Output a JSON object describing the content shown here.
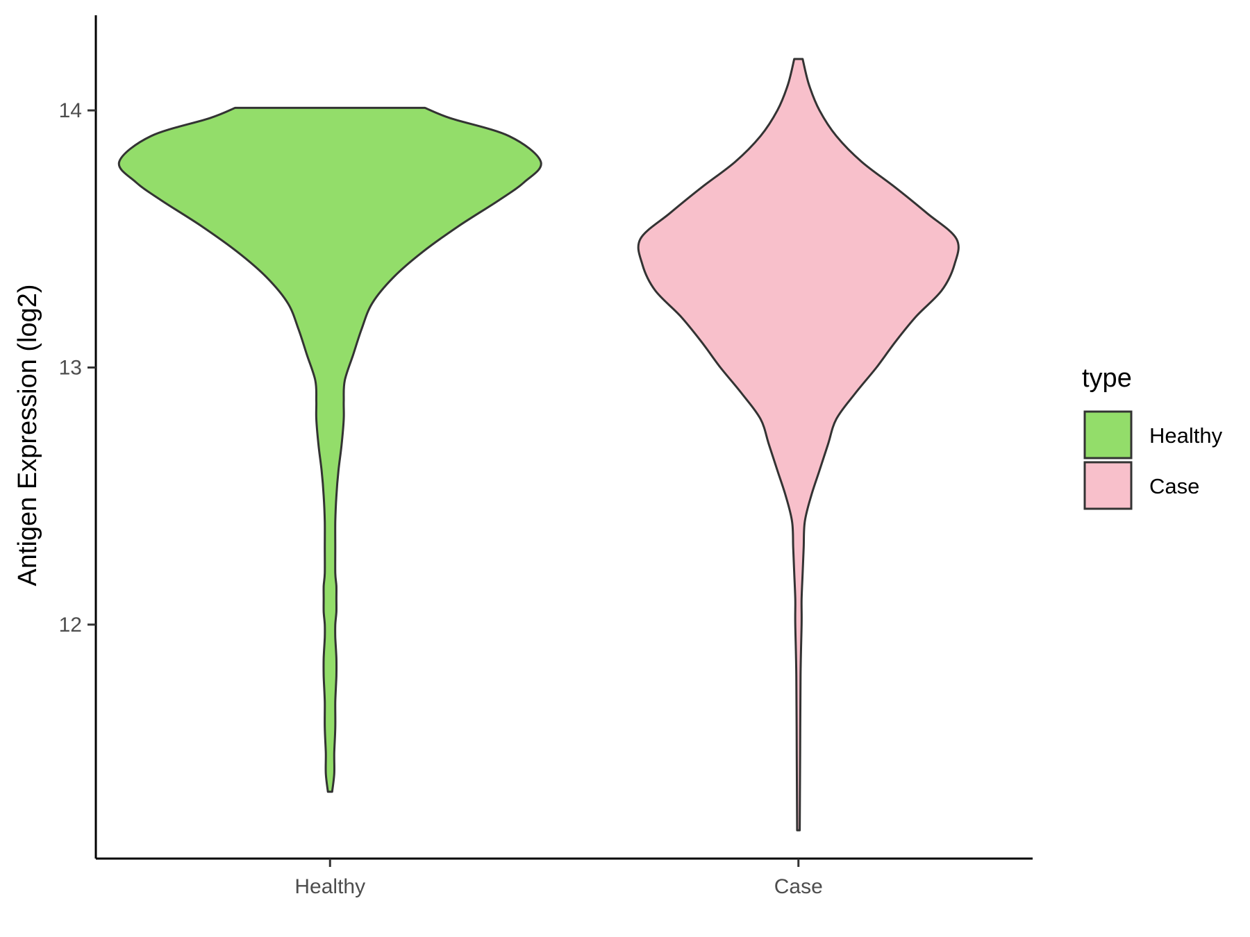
{
  "chart_data": {
    "type": "violin",
    "ylabel": "Antigen Expression (log2)",
    "xlabel": "",
    "categories": [
      "Healthy",
      "Case"
    ],
    "yticks": [
      12,
      13,
      14
    ],
    "ylim": [
      11.09,
      14.37
    ],
    "legend": {
      "title": "type",
      "position": "right",
      "entries": [
        {
          "label": "Healthy",
          "color": "#93dd6a"
        },
        {
          "label": "Case",
          "color": "#f8c0cb"
        }
      ]
    },
    "grid": false,
    "series": [
      {
        "category": "Healthy",
        "color": "#93dd6a",
        "min": 11.35,
        "max": 14.01,
        "density_y": [
          11.35,
          11.42,
          11.5,
          11.6,
          11.7,
          11.8,
          11.87,
          11.95,
          12.0,
          12.05,
          12.1,
          12.15,
          12.2,
          12.3,
          12.4,
          12.5,
          12.6,
          12.7,
          12.8,
          12.87,
          12.95,
          13.05,
          13.15,
          13.25,
          13.35,
          13.45,
          13.55,
          13.65,
          13.72,
          13.8,
          13.9,
          13.97,
          14.01
        ],
        "density_w": [
          0.01,
          0.02,
          0.02,
          0.025,
          0.025,
          0.03,
          0.03,
          0.025,
          0.025,
          0.03,
          0.03,
          0.03,
          0.025,
          0.025,
          0.025,
          0.03,
          0.04,
          0.055,
          0.065,
          0.065,
          0.07,
          0.11,
          0.15,
          0.2,
          0.3,
          0.44,
          0.61,
          0.8,
          0.92,
          1.0,
          0.85,
          0.57,
          0.45
        ]
      },
      {
        "category": "Case",
        "color": "#f8c0cb",
        "min": 11.2,
        "max": 14.2,
        "density_y": [
          11.2,
          11.5,
          11.8,
          12.0,
          12.1,
          12.2,
          12.3,
          12.4,
          12.5,
          12.6,
          12.7,
          12.8,
          12.9,
          13.0,
          13.1,
          13.2,
          13.3,
          13.4,
          13.5,
          13.6,
          13.7,
          13.8,
          13.9,
          14.0,
          14.1,
          14.2
        ],
        "density_w": [
          0.006,
          0.008,
          0.01,
          0.015,
          0.015,
          0.02,
          0.025,
          0.03,
          0.06,
          0.1,
          0.14,
          0.18,
          0.27,
          0.37,
          0.46,
          0.56,
          0.68,
          0.74,
          0.75,
          0.61,
          0.46,
          0.3,
          0.18,
          0.1,
          0.05,
          0.02
        ]
      }
    ]
  }
}
